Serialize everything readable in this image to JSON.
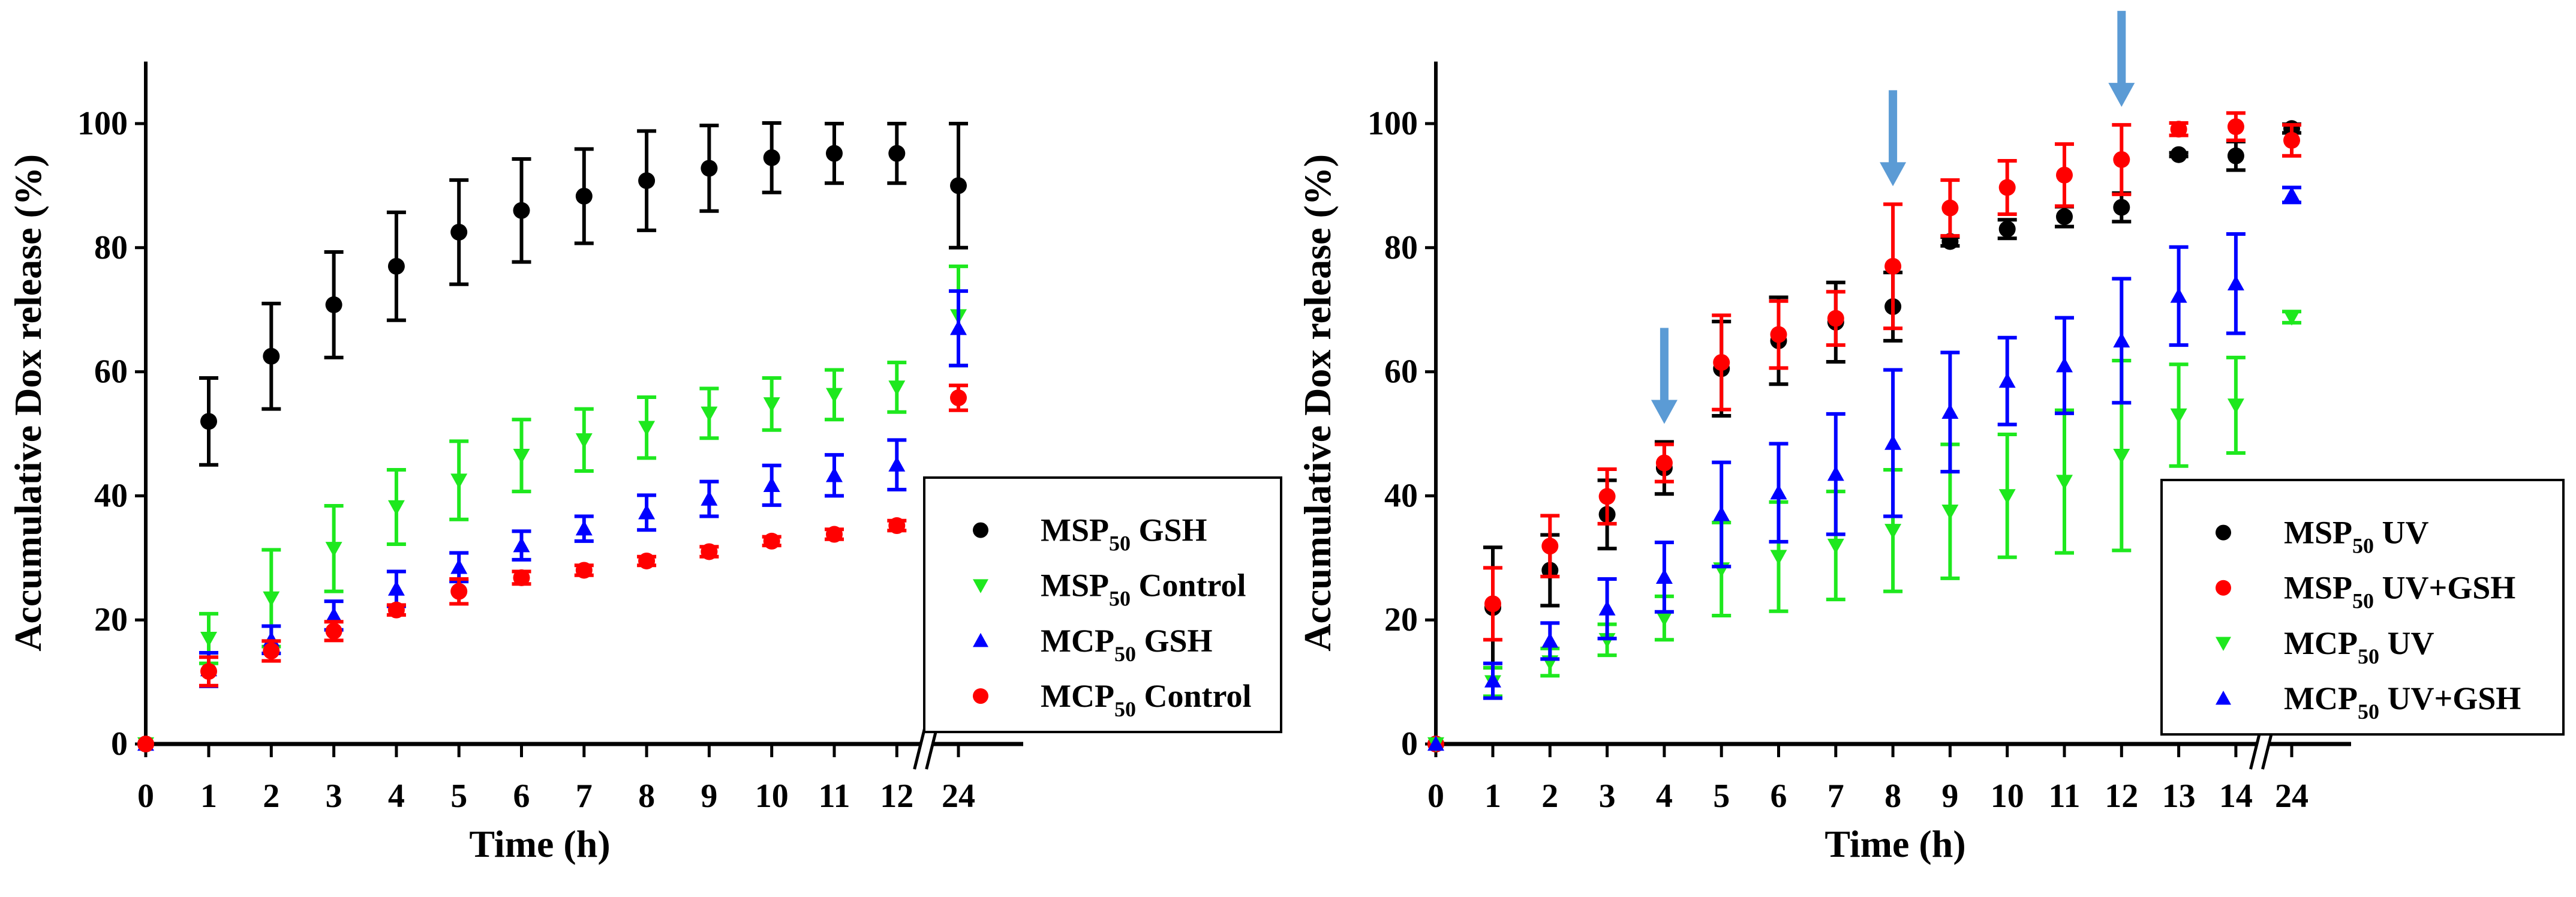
{
  "chart_data": [
    {
      "type": "scatter",
      "title": "",
      "xlabel": "Time (h)",
      "ylabel": "Accumulative Dox release (%)",
      "ylim": [
        0,
        110
      ],
      "yticks": [
        0,
        20,
        40,
        60,
        80,
        100
      ],
      "categories": [
        "0",
        "1",
        "2",
        "3",
        "4",
        "5",
        "6",
        "7",
        "8",
        "9",
        "10",
        "11",
        "12",
        "24"
      ],
      "axis_break_between": [
        "12",
        "24"
      ],
      "legend_position": "bottom-right",
      "series": [
        {
          "name": "MSP50 GSH",
          "label": {
            "main": "MSP",
            "sub": "50",
            "suffix": " GSH"
          },
          "color": "#000000",
          "marker": "circle",
          "values": [
            0,
            52,
            62.5,
            70.8,
            77,
            82.5,
            86,
            88.3,
            90.8,
            92.8,
            94.5,
            95.2,
            95.2,
            90
          ],
          "errors": [
            0,
            7,
            8.5,
            8.5,
            8.7,
            8.4,
            8.3,
            7.6,
            8,
            6.9,
            5.6,
            4.8,
            4.8,
            10
          ]
        },
        {
          "name": "MSP50 Control",
          "label": {
            "main": "MSP",
            "sub": "50",
            "suffix": " Control"
          },
          "color": "#1ee81e",
          "marker": "triangle-down",
          "values": [
            0,
            17,
            23.5,
            31.5,
            38.2,
            42.5,
            46.5,
            49,
            51,
            53.3,
            54.8,
            56.3,
            57.5,
            69
          ],
          "errors": [
            0,
            4,
            7.8,
            6.9,
            6,
            6.3,
            5.8,
            5,
            4.9,
            4,
            4.2,
            4,
            4,
            8
          ]
        },
        {
          "name": "MCP50 GSH",
          "label": {
            "main": "MCP",
            "sub": "50",
            "suffix": " GSH"
          },
          "color": "#0000ff",
          "marker": "triangle-up",
          "values": [
            0,
            12,
            16.8,
            20.7,
            25,
            28.5,
            32,
            34.7,
            37.3,
            39.5,
            41.7,
            43.3,
            45,
            67
          ],
          "errors": [
            0,
            2.7,
            2.2,
            2.3,
            2.8,
            2.3,
            2.3,
            2,
            2.8,
            2.8,
            3.2,
            3.3,
            4,
            6
          ]
        },
        {
          "name": "MCP50 Control",
          "label": {
            "main": "MCP",
            "sub": "50",
            "suffix": " Control"
          },
          "color": "#ff0000",
          "marker": "circle",
          "values": [
            0,
            11.7,
            15,
            18.2,
            21.6,
            24.6,
            26.8,
            28,
            29.5,
            31,
            32.7,
            33.8,
            35.2,
            55.8
          ],
          "errors": [
            0,
            2.3,
            1.6,
            1.5,
            0.8,
            2,
            1,
            0.8,
            0.7,
            0.8,
            0.7,
            0.8,
            0.8,
            2
          ]
        }
      ],
      "annotations": []
    },
    {
      "type": "scatter",
      "title": "",
      "xlabel": "Time (h)",
      "ylabel": "Accumulative Dox release (%)",
      "ylim": [
        0,
        110
      ],
      "yticks": [
        0,
        20,
        40,
        60,
        80,
        100
      ],
      "categories": [
        "0",
        "1",
        "2",
        "3",
        "4",
        "5",
        "6",
        "7",
        "8",
        "9",
        "10",
        "11",
        "12",
        "13",
        "14",
        "24"
      ],
      "axis_break_between": [
        "14",
        "24"
      ],
      "legend_position": "bottom-right",
      "series": [
        {
          "name": "MSP50 UV",
          "label": {
            "main": "MSP",
            "sub": "50",
            "suffix": " UV"
          },
          "color": "#000000",
          "marker": "circle",
          "values": [
            0,
            22,
            28,
            37,
            44.5,
            60.5,
            65,
            68,
            70.5,
            81,
            83,
            85,
            86.5,
            95,
            94.8,
            99.2
          ],
          "errors": [
            0,
            9.7,
            5.7,
            5.5,
            4.2,
            7.6,
            7,
            6.4,
            5.5,
            0.7,
            1.5,
            1.6,
            2.3,
            0.3,
            2.3,
            0.7
          ]
        },
        {
          "name": "MSP50 UV+GSH",
          "label": {
            "main": "MSP",
            "sub": "50",
            "suffix": " UV+GSH"
          },
          "color": "#ff0000",
          "marker": "circle",
          "values": [
            0,
            22.6,
            31.9,
            39.9,
            45.3,
            61.5,
            66,
            68.6,
            77,
            86.4,
            89.7,
            91.7,
            94.2,
            99.1,
            99.5,
            97.3
          ],
          "errors": [
            0,
            5.8,
            4.9,
            4.4,
            3,
            7.6,
            5.4,
            4.3,
            10,
            4.5,
            4.3,
            5,
            5.6,
            1,
            2.2,
            2.5
          ]
        },
        {
          "name": "MCP50 UV",
          "label": {
            "main": "MCP",
            "sub": "50",
            "suffix": " UV"
          },
          "color": "#1ee81e",
          "marker": "triangle-down",
          "values": [
            0,
            10,
            13.2,
            16.8,
            20.3,
            28.2,
            30.2,
            32,
            34.4,
            37.5,
            40,
            42.3,
            46.5,
            53,
            54.6,
            68.8
          ],
          "errors": [
            0,
            2.3,
            2.2,
            2.5,
            3.5,
            7.5,
            8.8,
            8.7,
            9.8,
            10.8,
            9.9,
            11.5,
            15.3,
            8.2,
            7.7,
            0.9
          ]
        },
        {
          "name": "MCP50 UV+GSH",
          "label": {
            "main": "MCP",
            "sub": "50",
            "suffix": " UV+GSH"
          },
          "color": "#0000ff",
          "marker": "triangle-up",
          "values": [
            0,
            10.2,
            16.6,
            21.8,
            26.9,
            37,
            40.5,
            43.5,
            48.5,
            53.5,
            58.5,
            61,
            65,
            72.2,
            74.2,
            88.5
          ],
          "errors": [
            0,
            2.8,
            2.9,
            4.8,
            5.6,
            8.4,
            7.9,
            9.7,
            11.8,
            9.6,
            7,
            7.7,
            10,
            7.9,
            8,
            1.2
          ]
        }
      ],
      "annotations": [
        {
          "type": "arrow-down",
          "at": "4",
          "color": "#5b9bd5"
        },
        {
          "type": "arrow-down",
          "at": "8",
          "color": "#5b9bd5"
        },
        {
          "type": "arrow-down",
          "at": "12",
          "color": "#5b9bd5"
        }
      ]
    }
  ]
}
